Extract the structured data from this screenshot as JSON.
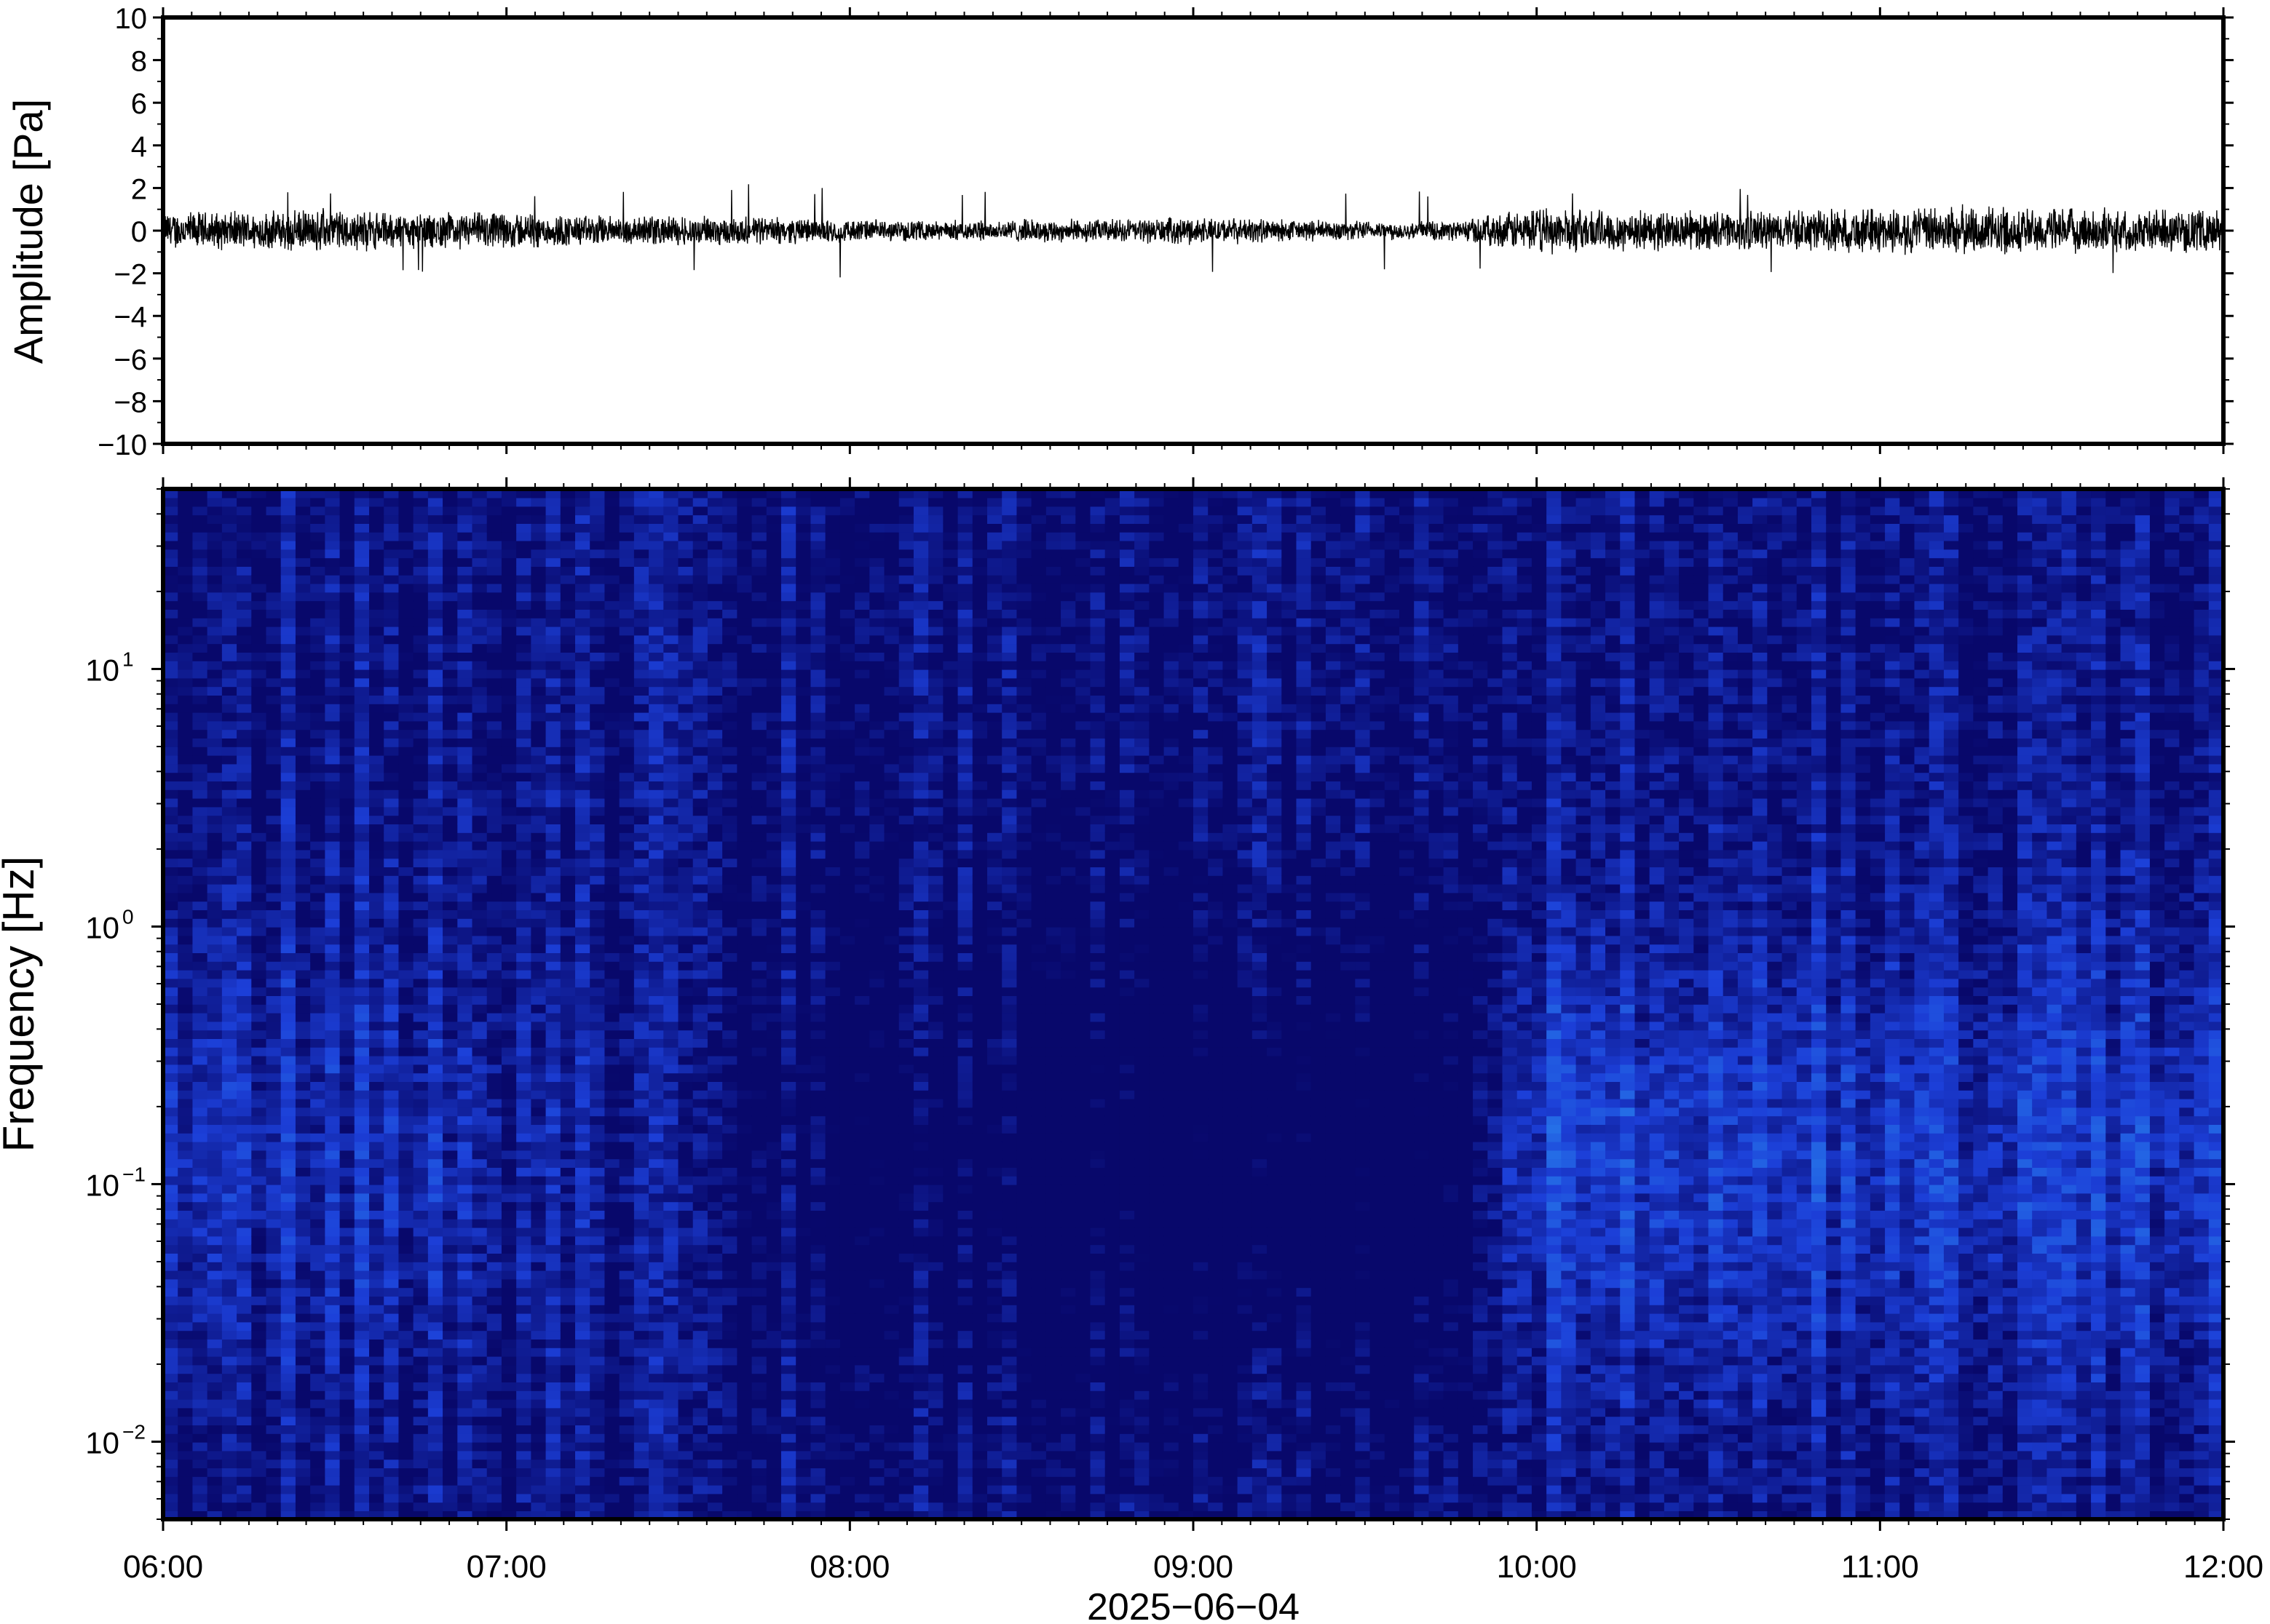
{
  "chart_data": [
    {
      "type": "line",
      "ylabel": "Amplitude [Pa]",
      "ylim": [
        -10,
        10
      ],
      "yticks": [
        "10",
        "8",
        "6",
        "4",
        "2",
        "0",
        "−2",
        "−4",
        "−6",
        "−8",
        "−10"
      ],
      "xlim": [
        "06:00",
        "12:00"
      ],
      "series": [
        {
          "x_hours": [
            6.0,
            6.25,
            6.5,
            6.75,
            7.0,
            7.25,
            7.5,
            7.75,
            8.0,
            8.25,
            8.5,
            8.75,
            9.0,
            9.25,
            9.5,
            9.75,
            10.0,
            10.25,
            10.5,
            10.75,
            11.0,
            11.25,
            11.5,
            11.75,
            12.0
          ],
          "envelope_pa": [
            1.0,
            1.0,
            1.1,
            0.9,
            1.0,
            0.8,
            0.8,
            0.7,
            0.6,
            0.5,
            0.6,
            0.6,
            0.7,
            0.6,
            0.5,
            0.5,
            1.2,
            1.1,
            1.0,
            1.1,
            1.2,
            1.3,
            1.2,
            1.1,
            1.1
          ],
          "peak_excursions_pa": [
            2.0,
            -2.0,
            1.9,
            -2.3
          ]
        }
      ],
      "grid": false
    },
    {
      "type": "heatmap",
      "ylabel": "Frequency [Hz]",
      "yscale": "log",
      "yticks": [
        {
          "base": "10",
          "exp": "1"
        },
        {
          "base": "10",
          "exp": "0"
        },
        {
          "base": "10",
          "exp": "−1"
        },
        {
          "base": "10",
          "exp": "−2"
        }
      ],
      "ylim_hz": [
        0.005,
        50
      ],
      "xlabel": "2025−06−04",
      "xticks": [
        "06:00",
        "07:00",
        "08:00",
        "09:00",
        "10:00",
        "11:00",
        "12:00"
      ],
      "colormap": [
        "#08086b",
        "#1c3fd8",
        "#2a8cf0",
        "#4cc3f0",
        "#7de8c8",
        "#c4f096",
        "#f4ee8c",
        "#fcc46c",
        "#f8964c",
        "#ef5a4c"
      ],
      "power_profile_by_log10_freq": [
        {
          "log10_hz": 1.7,
          "level": 0.02
        },
        {
          "log10_hz": 1.5,
          "level": 0.1
        },
        {
          "log10_hz": 1.3,
          "level": 0.22
        },
        {
          "log10_hz": 1.0,
          "level": 0.35
        },
        {
          "log10_hz": 0.5,
          "level": 0.48
        },
        {
          "log10_hz": 0.0,
          "level": 0.6
        },
        {
          "log10_hz": -0.5,
          "level": 0.72
        },
        {
          "log10_hz": -1.0,
          "level": 0.9
        },
        {
          "log10_hz": -1.3,
          "level": 0.86
        },
        {
          "log10_hz": -1.6,
          "level": 0.6
        },
        {
          "log10_hz": -1.8,
          "level": 0.45
        },
        {
          "log10_hz": -2.0,
          "level": 0.38
        },
        {
          "log10_hz": -2.3,
          "level": 0.33
        }
      ],
      "activity_by_hour": [
        {
          "hour": 6.0,
          "level": 1.0
        },
        {
          "hour": 7.0,
          "level": 0.9
        },
        {
          "hour": 8.0,
          "level": 0.7
        },
        {
          "hour": 9.0,
          "level": 0.6
        },
        {
          "hour": 9.7,
          "level": 0.55
        },
        {
          "hour": 10.0,
          "level": 1.05
        },
        {
          "hour": 11.0,
          "level": 1.0
        },
        {
          "hour": 12.0,
          "level": 1.0
        }
      ]
    }
  ]
}
